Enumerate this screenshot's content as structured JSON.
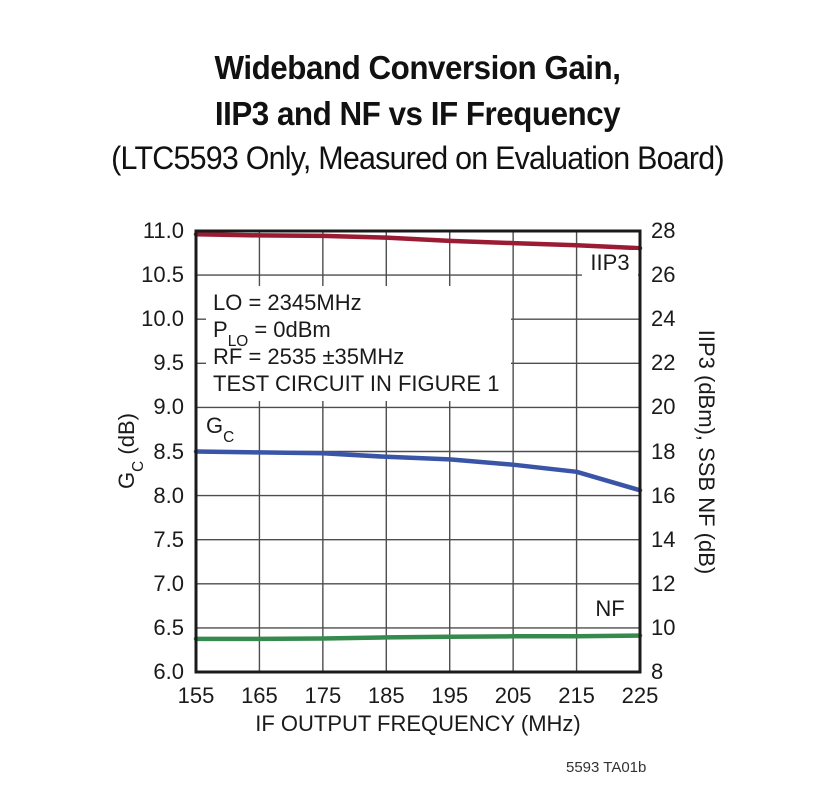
{
  "header": {
    "title_line1": "Wideband Conversion Gain,",
    "title_line2": "IIP3 and NF vs IF Frequency",
    "subtitle": "(LTC5593 Only, Measured on Evaluation Board)"
  },
  "annotation": {
    "line1": "LO = 2345MHz",
    "line2_prefix": "P",
    "line2_sub": "LO",
    "line2_suffix": " = 0dBm",
    "line3": "RF = 2535 ±35MHz",
    "line4": "TEST CIRCUIT IN FIGURE 1"
  },
  "labels": {
    "gc_prefix": "G",
    "gc_sub": "C",
    "gc_axis_suffix": " (dB)",
    "right_axis": "IIP3 (dBm), SSB NF (dB)",
    "x_axis": "IF OUTPUT FREQUENCY (MHz)",
    "iip3_curve": "IIP3",
    "nf_curve": "NF",
    "watermark": "5593 TA01b"
  },
  "colors": {
    "iip3": "#9B1B33",
    "gc": "#3A55A8",
    "nf": "#378A4D",
    "grid": "#4D4D4D",
    "border": "#1B1B1B",
    "text": "#1A1A1A"
  },
  "chart_data": {
    "type": "line",
    "title": "Wideband Conversion Gain, IIP3 and NF vs IF Frequency (LTC5593 Only, Measured on Evaluation Board)",
    "xlabel": "IF OUTPUT FREQUENCY (MHz)",
    "x": [
      155,
      165,
      175,
      185,
      195,
      205,
      215,
      225
    ],
    "xlim": [
      155,
      225
    ],
    "x_tick_labels": [
      "155",
      "165",
      "175",
      "185",
      "195",
      "205",
      "215",
      "225"
    ],
    "grid": true,
    "legend_position": "inline-curve-labels",
    "left_axis": {
      "label": "GC (dB)",
      "lim": [
        6.0,
        11.0
      ],
      "tick_step": 0.5,
      "tick_labels": [
        "11.0",
        "10.5",
        "10.0",
        "9.5",
        "9.0",
        "8.5",
        "8.0",
        "7.5",
        "7.0",
        "6.5",
        "6.0"
      ]
    },
    "right_axis": {
      "label": "IIP3 (dBm), SSB NF (dB)",
      "lim": [
        8,
        28
      ],
      "tick_step": 2,
      "tick_labels": [
        "28",
        "26",
        "24",
        "22",
        "20",
        "18",
        "16",
        "14",
        "12",
        "10",
        "8"
      ]
    },
    "series": [
      {
        "name": "IIP3",
        "axis": "right",
        "color": "#9B1B33",
        "values": [
          27.85,
          27.8,
          27.78,
          27.7,
          27.55,
          27.45,
          27.35,
          27.22
        ]
      },
      {
        "name": "GC",
        "axis": "left",
        "color": "#3A55A8",
        "values": [
          8.5,
          8.49,
          8.48,
          8.44,
          8.41,
          8.35,
          8.27,
          8.06
        ]
      },
      {
        "name": "NF",
        "axis": "right",
        "color": "#378A4D",
        "values": [
          9.5,
          9.5,
          9.52,
          9.57,
          9.6,
          9.62,
          9.62,
          9.65
        ]
      }
    ],
    "annotations": [
      "LO = 2345MHz",
      "PLO = 0dBm",
      "RF = 2535 ±35MHz",
      "TEST CIRCUIT IN FIGURE 1"
    ]
  }
}
